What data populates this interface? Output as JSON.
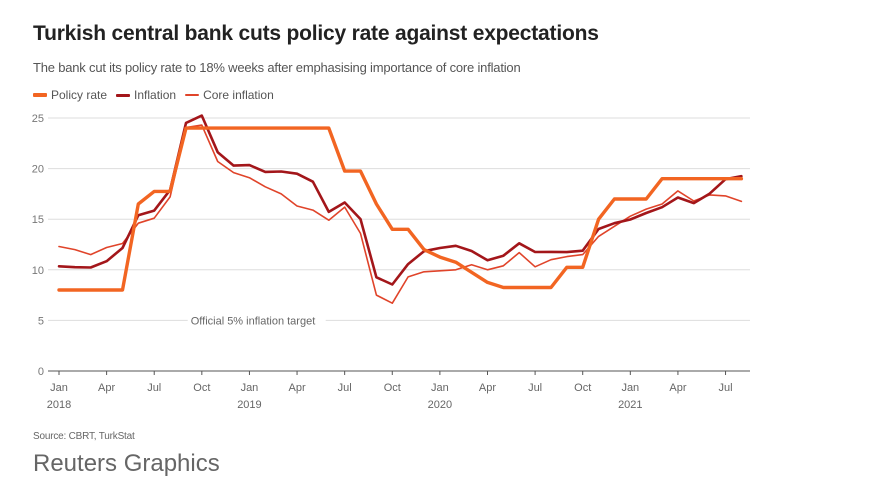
{
  "header": {
    "title": "Turkish central bank cuts policy rate against expectations",
    "subtitle": "The bank cut its policy rate to 18% weeks after emphasising importance of core inflation"
  },
  "footer": {
    "source": "Source: CBRT, TurkStat",
    "brand": "Reuters Graphics"
  },
  "chart_data": {
    "type": "line",
    "title": "Turkish central bank cuts policy rate against expectations",
    "subtitle": "The bank cut its policy rate to 18% weeks after emphasising importance of core inflation",
    "xlabel": "",
    "ylabel": "",
    "ylim": [
      0,
      25
    ],
    "yticks": [
      0,
      5,
      10,
      15,
      20,
      25
    ],
    "grid": true,
    "legend_position": "top-left",
    "x_start": "2018-01",
    "x_end": "2021-09",
    "xticks": [
      {
        "month_index": 0,
        "label": "Jan",
        "year": "2018"
      },
      {
        "month_index": 3,
        "label": "Apr",
        "year": ""
      },
      {
        "month_index": 6,
        "label": "Jul",
        "year": ""
      },
      {
        "month_index": 9,
        "label": "Oct",
        "year": ""
      },
      {
        "month_index": 12,
        "label": "Jan",
        "year": "2019"
      },
      {
        "month_index": 15,
        "label": "Apr",
        "year": ""
      },
      {
        "month_index": 18,
        "label": "Jul",
        "year": ""
      },
      {
        "month_index": 21,
        "label": "Oct",
        "year": ""
      },
      {
        "month_index": 24,
        "label": "Jan",
        "year": "2020"
      },
      {
        "month_index": 27,
        "label": "Apr",
        "year": ""
      },
      {
        "month_index": 30,
        "label": "Jul",
        "year": ""
      },
      {
        "month_index": 33,
        "label": "Oct",
        "year": ""
      },
      {
        "month_index": 36,
        "label": "Jan",
        "year": "2021"
      },
      {
        "month_index": 39,
        "label": "Apr",
        "year": ""
      },
      {
        "month_index": 42,
        "label": "Jul",
        "year": ""
      }
    ],
    "annotations": [
      {
        "text": "Official 5% inflation target",
        "y": 5,
        "month_index": 8.3
      }
    ],
    "x": [
      "2018-01",
      "2018-02",
      "2018-03",
      "2018-04",
      "2018-05",
      "2018-06",
      "2018-07",
      "2018-08",
      "2018-09",
      "2018-10",
      "2018-11",
      "2018-12",
      "2019-01",
      "2019-02",
      "2019-03",
      "2019-04",
      "2019-05",
      "2019-06",
      "2019-07",
      "2019-08",
      "2019-09",
      "2019-10",
      "2019-11",
      "2019-12",
      "2020-01",
      "2020-02",
      "2020-03",
      "2020-04",
      "2020-05",
      "2020-06",
      "2020-07",
      "2020-08",
      "2020-09",
      "2020-10",
      "2020-11",
      "2020-12",
      "2021-01",
      "2021-02",
      "2021-03",
      "2021-04",
      "2021-05",
      "2021-06",
      "2021-07",
      "2021-08"
    ],
    "series": [
      {
        "name": "Policy rate",
        "color": "#f26522",
        "values": [
          8,
          8,
          8,
          8,
          8,
          16.5,
          17.75,
          17.75,
          24,
          24,
          24,
          24,
          24,
          24,
          24,
          24,
          24,
          24,
          19.75,
          19.75,
          16.5,
          14,
          14,
          12,
          11.25,
          10.75,
          9.75,
          8.75,
          8.25,
          8.25,
          8.25,
          8.25,
          10.25,
          10.25,
          15,
          17,
          17,
          17,
          19,
          19,
          19,
          19,
          19,
          19
        ]
      },
      {
        "name": "Inflation",
        "color": "#a3161a",
        "values": [
          10.35,
          10.26,
          10.23,
          10.85,
          12.15,
          15.39,
          15.85,
          17.9,
          24.52,
          25.24,
          21.62,
          20.3,
          20.35,
          19.67,
          19.71,
          19.5,
          18.71,
          15.72,
          16.65,
          15.01,
          9.26,
          8.55,
          10.56,
          11.84,
          12.15,
          12.37,
          11.86,
          10.94,
          11.39,
          12.62,
          11.76,
          11.77,
          11.75,
          11.89,
          14.03,
          14.6,
          14.97,
          15.61,
          16.19,
          17.14,
          16.59,
          17.53,
          18.95,
          19.25
        ]
      },
      {
        "name": "Core inflation",
        "color": "#e0442a",
        "values": [
          12.3,
          12.0,
          11.5,
          12.2,
          12.6,
          14.6,
          15.1,
          17.2,
          24.05,
          24.3,
          20.7,
          19.6,
          19.1,
          18.2,
          17.5,
          16.3,
          15.9,
          14.9,
          16.2,
          13.6,
          7.5,
          6.7,
          9.3,
          9.8,
          9.9,
          10.0,
          10.5,
          10.0,
          10.4,
          11.7,
          10.3,
          11.0,
          11.3,
          11.5,
          13.3,
          14.3,
          15.3,
          16.0,
          16.5,
          17.8,
          16.8,
          17.4,
          17.3,
          16.76
        ]
      }
    ]
  }
}
